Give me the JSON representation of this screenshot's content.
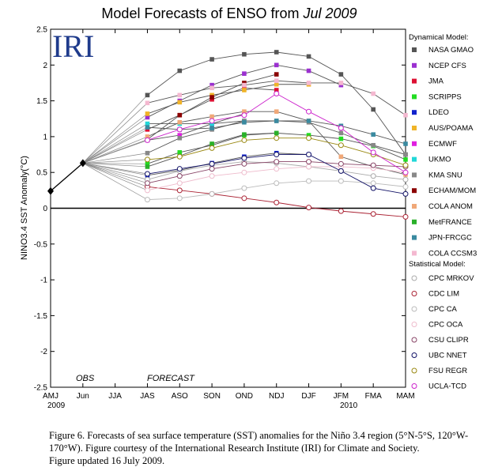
{
  "title_prefix": "Model Forecasts of ENSO from ",
  "title_date": "Jul 2009",
  "logo": "IRI",
  "annotations": {
    "obs": "OBS",
    "forecast": "FORECAST",
    "year_start": "2009",
    "year_end": "2010"
  },
  "legend": {
    "dynamical_heading": "Dynamical Model:",
    "statistical_heading": "Statistical Model:"
  },
  "caption": {
    "line1": "Figure 6. Forecasts of sea surface temperature (SST) anomalies for the Niño 3.4 region (5°N-5°S, 120°W-170°W).  Figure courtesy of the International Research Institute (IRI) for Climate and Society.",
    "line2": "Figure updated 16 July 2009."
  },
  "chart_data": {
    "type": "line",
    "title": "Model Forecasts of ENSO from Jul 2009",
    "ylabel": "NINO3.4 SST Anomaly(°C)",
    "xlabel": "",
    "categories": [
      "AMJ",
      "Jun",
      "JJA",
      "JAS",
      "ASO",
      "SON",
      "OND",
      "NDJ",
      "DJF",
      "JFM",
      "FMA",
      "MAM"
    ],
    "ylim": [
      -2.5,
      2.5
    ],
    "yticks": [
      "-2.5",
      "-2",
      "-1.5",
      "-1",
      "-0.5",
      "0",
      "0.5",
      "1",
      "1.5",
      "2",
      "2.5"
    ],
    "observed": {
      "x": [
        "AMJ",
        "Jun"
      ],
      "values": [
        0.24,
        0.63
      ],
      "color": "#000000"
    },
    "series": [
      {
        "name": "NASA GMAO",
        "group": "dynamical",
        "color": "#555555",
        "marker": "square",
        "values": [
          null,
          null,
          null,
          1.58,
          1.92,
          2.08,
          2.15,
          2.18,
          2.12,
          1.87,
          1.38,
          0.75
        ]
      },
      {
        "name": "NCEP CFS",
        "group": "dynamical",
        "color": "#9b30d0",
        "marker": "square",
        "values": [
          null,
          null,
          null,
          1.27,
          1.5,
          1.72,
          1.88,
          2.0,
          1.92,
          1.72,
          null,
          null
        ]
      },
      {
        "name": "JMA",
        "group": "dynamical",
        "color": "#dd1133",
        "marker": "square",
        "values": [
          null,
          null,
          null,
          1.1,
          1.3,
          1.52,
          1.68,
          1.65,
          null,
          null,
          null,
          null
        ]
      },
      {
        "name": "SCRIPPS",
        "group": "dynamical",
        "color": "#22dd22",
        "marker": "square",
        "values": [
          null,
          null,
          null,
          0.62,
          0.78,
          0.88,
          1.02,
          1.05,
          1.02,
          0.97,
          0.87,
          0.68
        ]
      },
      {
        "name": "LDEO",
        "group": "dynamical",
        "color": "#1122cc",
        "marker": "square",
        "values": [
          null,
          null,
          null,
          0.46,
          0.53,
          0.63,
          0.72,
          0.77,
          0.75,
          null,
          null,
          null
        ]
      },
      {
        "name": "AUS/POAMA",
        "group": "dynamical",
        "color": "#f0b428",
        "marker": "square",
        "values": [
          null,
          null,
          null,
          1.32,
          1.48,
          1.58,
          1.65,
          1.73,
          1.73,
          null,
          null,
          null
        ]
      },
      {
        "name": "ECMWF",
        "group": "dynamical",
        "color": "#e020e0",
        "marker": "square",
        "values": [
          null,
          null,
          null,
          0.95,
          1.02,
          1.18,
          1.32,
          null,
          null,
          null,
          null,
          null
        ]
      },
      {
        "name": "UKMO",
        "group": "dynamical",
        "color": "#22d8d8",
        "marker": "square",
        "values": [
          null,
          null,
          null,
          1.18,
          1.18,
          1.18,
          1.22,
          null,
          null,
          null,
          null,
          null
        ]
      },
      {
        "name": "KMA SNU",
        "group": "dynamical",
        "color": "#888888",
        "marker": "square",
        "values": [
          null,
          null,
          null,
          0.77,
          0.98,
          1.1,
          1.22,
          1.22,
          1.2,
          1.05,
          0.88,
          0.75
        ]
      },
      {
        "name": "ECHAM/MOM",
        "group": "dynamical",
        "color": "#8b0000",
        "marker": "square",
        "values": [
          null,
          null,
          null,
          0.96,
          1.3,
          1.55,
          1.75,
          1.87,
          null,
          null,
          null,
          null
        ]
      },
      {
        "name": "COLA ANOM",
        "group": "dynamical",
        "color": "#f0a878",
        "marker": "square",
        "values": [
          null,
          null,
          null,
          1.0,
          1.2,
          1.28,
          1.35,
          1.35,
          1.22,
          0.72,
          0.58,
          0.47
        ]
      },
      {
        "name": "MetFRANCE",
        "group": "dynamical",
        "color": "#2ab02a",
        "marker": "square",
        "values": [
          null,
          null,
          null,
          0.58,
          0.73,
          0.9,
          1.03,
          1.05,
          null,
          null,
          null,
          null
        ]
      },
      {
        "name": "JPN-FRCGC",
        "group": "dynamical",
        "color": "#3a8aa0",
        "marker": "square",
        "values": [
          null,
          null,
          null,
          1.13,
          1.1,
          1.12,
          1.2,
          1.22,
          1.22,
          1.15,
          1.03,
          0.9
        ]
      },
      {
        "name": "COLA CCSM3",
        "group": "dynamical",
        "color": "#f4b8d0",
        "marker": "square",
        "values": [
          null,
          null,
          null,
          1.47,
          1.58,
          1.68,
          1.72,
          1.78,
          1.75,
          1.75,
          1.6,
          1.3
        ]
      },
      {
        "name": "CPC MRKOV",
        "group": "statistical",
        "color": "#aaaaaa",
        "marker": "circle",
        "values": [
          null,
          null,
          null,
          0.4,
          0.52,
          0.6,
          0.65,
          0.63,
          0.58,
          0.52,
          0.45,
          0.4
        ]
      },
      {
        "name": "CDC LIM",
        "group": "statistical",
        "color": "#aa2233",
        "marker": "circle",
        "values": [
          null,
          null,
          null,
          0.3,
          0.25,
          0.2,
          0.14,
          0.08,
          0.01,
          -0.04,
          -0.08,
          -0.12
        ]
      },
      {
        "name": "CPC CA",
        "group": "statistical",
        "color": "#bbbbbb",
        "marker": "circle",
        "values": [
          null,
          null,
          null,
          0.12,
          0.14,
          0.2,
          0.28,
          0.35,
          0.38,
          0.38,
          0.35,
          0.3
        ]
      },
      {
        "name": "CPC OCA",
        "group": "statistical",
        "color": "#eebbcc",
        "marker": "circle",
        "values": [
          null,
          null,
          null,
          0.25,
          0.35,
          0.45,
          0.5,
          0.55,
          0.58,
          0.58,
          0.56,
          0.5
        ]
      },
      {
        "name": "CSU CLIPR",
        "group": "statistical",
        "color": "#884466",
        "marker": "circle",
        "values": [
          null,
          null,
          null,
          0.35,
          0.45,
          0.55,
          0.62,
          0.65,
          0.65,
          0.62,
          0.6,
          0.58
        ]
      },
      {
        "name": "UBC NNET",
        "group": "statistical",
        "color": "#111166",
        "marker": "circle",
        "values": [
          null,
          null,
          null,
          0.48,
          0.55,
          0.62,
          0.7,
          0.75,
          0.75,
          0.52,
          0.28,
          0.2
        ]
      },
      {
        "name": "FSU REGR",
        "group": "statistical",
        "color": "#998811",
        "marker": "circle",
        "values": [
          null,
          null,
          null,
          0.68,
          0.72,
          0.84,
          0.95,
          0.98,
          0.98,
          0.88,
          0.75,
          0.6
        ]
      },
      {
        "name": "UCLA-TCD",
        "group": "statistical",
        "color": "#cc22cc",
        "marker": "circle",
        "values": [
          null,
          null,
          null,
          0.95,
          1.1,
          1.22,
          1.3,
          1.6,
          1.35,
          1.12,
          0.78,
          0.5
        ]
      }
    ]
  }
}
